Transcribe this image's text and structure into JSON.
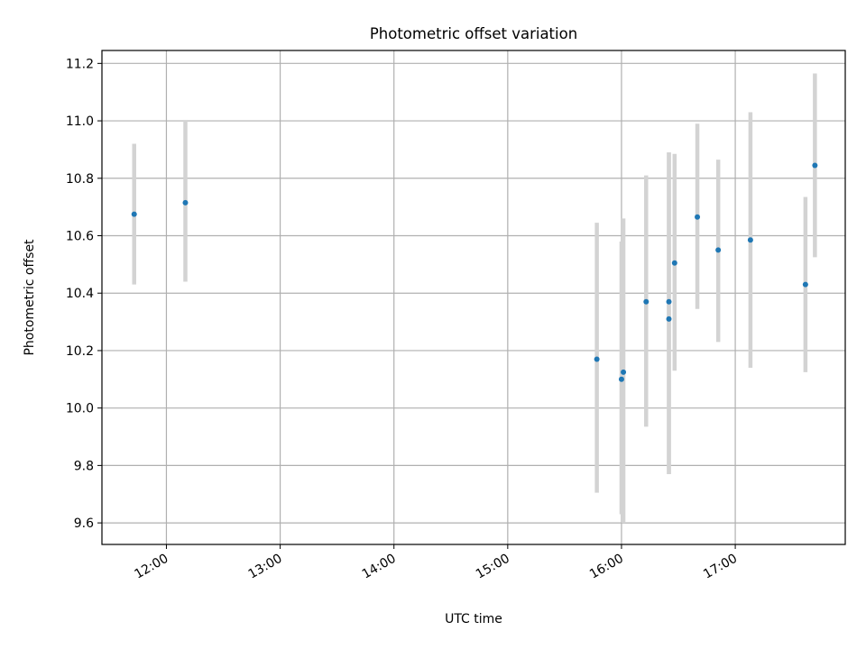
{
  "chart_data": {
    "type": "scatter",
    "title": "Photometric offset variation",
    "xlabel": "UTC time",
    "ylabel": "Photometric offset",
    "xlim": [
      "11:26",
      "17:58"
    ],
    "ylim": [
      9.525,
      11.245
    ],
    "x_ticks": [
      "12:00",
      "13:00",
      "14:00",
      "15:00",
      "16:00",
      "17:00"
    ],
    "y_ticks": [
      9.6,
      9.8,
      10.0,
      10.2,
      10.4,
      10.6,
      10.8,
      11.0,
      11.2
    ],
    "y_tick_labels": [
      "9.6",
      "9.8",
      "10.0",
      "10.2",
      "10.4",
      "10.6",
      "10.8",
      "11.0",
      "11.2"
    ],
    "grid": true,
    "x_tick_rotation_deg": 30,
    "marker_color": "#1f77b4",
    "errorbar_color": "#d3d3d3",
    "points": [
      {
        "x": "11:43",
        "y": 10.675,
        "ylow": 10.43,
        "yhigh": 10.92
      },
      {
        "x": "12:10",
        "y": 10.715,
        "ylow": 10.44,
        "yhigh": 11.0
      },
      {
        "x": "15:47",
        "y": 10.17,
        "ylow": 9.705,
        "yhigh": 10.645
      },
      {
        "x": "16:00",
        "y": 10.1,
        "ylow": 9.63,
        "yhigh": 10.58
      },
      {
        "x": "16:01",
        "y": 10.125,
        "ylow": 9.6,
        "yhigh": 10.66
      },
      {
        "x": "16:13",
        "y": 10.37,
        "ylow": 9.935,
        "yhigh": 10.81
      },
      {
        "x": "16:25",
        "y": 10.37,
        "ylow": 9.77,
        "yhigh": 10.89
      },
      {
        "x": "16:25",
        "y": 10.31,
        "ylow": 9.77,
        "yhigh": 10.89
      },
      {
        "x": "16:28",
        "y": 10.505,
        "ylow": 10.13,
        "yhigh": 10.885
      },
      {
        "x": "16:40",
        "y": 10.665,
        "ylow": 10.345,
        "yhigh": 10.99
      },
      {
        "x": "16:51",
        "y": 10.55,
        "ylow": 10.23,
        "yhigh": 10.865
      },
      {
        "x": "17:08",
        "y": 10.585,
        "ylow": 10.14,
        "yhigh": 11.03
      },
      {
        "x": "17:37",
        "y": 10.43,
        "ylow": 10.125,
        "yhigh": 10.735
      },
      {
        "x": "17:42",
        "y": 10.845,
        "ylow": 10.525,
        "yhigh": 11.165
      }
    ]
  }
}
